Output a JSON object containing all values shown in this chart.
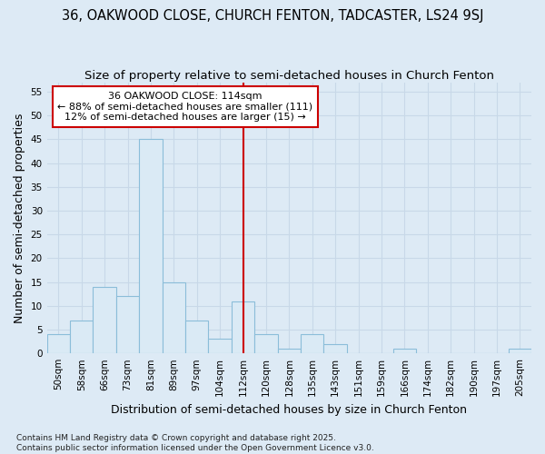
{
  "title": "36, OAKWOOD CLOSE, CHURCH FENTON, TADCASTER, LS24 9SJ",
  "subtitle": "Size of property relative to semi-detached houses in Church Fenton",
  "xlabel": "Distribution of semi-detached houses by size in Church Fenton",
  "ylabel": "Number of semi-detached properties",
  "footer": "Contains HM Land Registry data © Crown copyright and database right 2025.\nContains public sector information licensed under the Open Government Licence v3.0.",
  "bin_labels": [
    "50sqm",
    "58sqm",
    "66sqm",
    "73sqm",
    "81sqm",
    "89sqm",
    "97sqm",
    "104sqm",
    "112sqm",
    "120sqm",
    "128sqm",
    "135sqm",
    "143sqm",
    "151sqm",
    "159sqm",
    "166sqm",
    "174sqm",
    "182sqm",
    "190sqm",
    "197sqm",
    "205sqm"
  ],
  "bar_values": [
    4,
    7,
    14,
    12,
    45,
    15,
    7,
    3,
    11,
    4,
    1,
    4,
    2,
    0,
    0,
    1,
    0,
    0,
    0,
    0,
    1
  ],
  "bar_color": "#daeaf5",
  "bar_edge_color": "#8bbdd9",
  "property_line_x": 8.0,
  "annotation_line1": "36 OAKWOOD CLOSE: 114sqm",
  "annotation_line2": "← 88% of semi-detached houses are smaller (111)",
  "annotation_line3": "12% of semi-detached houses are larger (15) →",
  "vline_color": "#cc0000",
  "annotation_box_edge": "#cc0000",
  "annotation_box_face": "#ffffff",
  "ylim": [
    0,
    57
  ],
  "yticks": [
    0,
    5,
    10,
    15,
    20,
    25,
    30,
    35,
    40,
    45,
    50,
    55
  ],
  "grid_color": "#c8d8e8",
  "bg_color": "#ddeaf5",
  "title_fontsize": 10.5,
  "subtitle_fontsize": 9.5,
  "label_fontsize": 9,
  "tick_fontsize": 7.5,
  "footer_fontsize": 6.5,
  "annotation_fontsize": 8
}
